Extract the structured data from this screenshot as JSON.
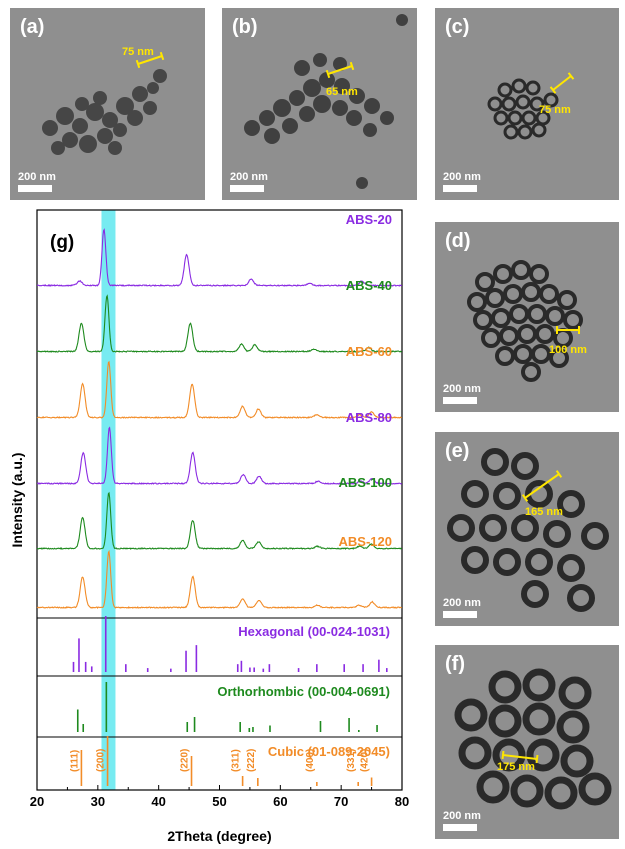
{
  "figure": {
    "panels": [
      {
        "id": "a",
        "label": "(a)",
        "scale_bar": "200 nm",
        "size_label": "75 nm"
      },
      {
        "id": "b",
        "label": "(b)",
        "scale_bar": "200 nm",
        "size_label": "65 nm"
      },
      {
        "id": "c",
        "label": "(c)",
        "scale_bar": "200 nm",
        "size_label": "75 nm"
      },
      {
        "id": "d",
        "label": "(d)",
        "scale_bar": "200 nm",
        "size_label": "100 nm"
      },
      {
        "id": "e",
        "label": "(e)",
        "scale_bar": "200 nm",
        "size_label": "165 nm"
      },
      {
        "id": "f",
        "label": "(f)",
        "scale_bar": "200 nm",
        "size_label": "175 nm"
      }
    ],
    "colors": {
      "purple": "#8a2be2",
      "green": "#1e8a1e",
      "orange": "#f28c28",
      "highlight": "#5fe8ee",
      "tem_background": "#8f8f8f"
    }
  },
  "chart_data": {
    "type": "line",
    "panel_label": "(g)",
    "xlabel": "2Theta (degree)",
    "ylabel": "Intensity (a.u.)",
    "xlim": [
      20,
      80
    ],
    "x_ticks": [
      20,
      30,
      40,
      50,
      60,
      70,
      80
    ],
    "highlight_band": [
      30.6,
      32.9
    ],
    "series": [
      {
        "name": "ABS-20",
        "color": "#8a2be2",
        "peaks": [
          [
            27.0,
            0.08
          ],
          [
            31.0,
            1.0
          ],
          [
            44.6,
            0.55
          ],
          [
            55.2,
            0.12
          ],
          [
            64.8,
            0.04
          ],
          [
            73.4,
            0.08
          ]
        ]
      },
      {
        "name": "ABS-40",
        "color": "#1e8a1e",
        "peaks": [
          [
            27.3,
            0.5
          ],
          [
            31.5,
            1.0
          ],
          [
            45.2,
            0.5
          ],
          [
            53.6,
            0.13
          ],
          [
            55.8,
            0.12
          ],
          [
            65.5,
            0.04
          ],
          [
            74.5,
            0.07
          ]
        ]
      },
      {
        "name": "ABS-60",
        "color": "#f28c28",
        "peaks": [
          [
            27.5,
            0.6
          ],
          [
            31.8,
            1.0
          ],
          [
            45.5,
            0.6
          ],
          [
            53.8,
            0.2
          ],
          [
            56.4,
            0.15
          ],
          [
            66.0,
            0.05
          ],
          [
            73.0,
            0.05
          ],
          [
            75.0,
            0.1
          ]
        ]
      },
      {
        "name": "ABS-80",
        "color": "#8a2be2",
        "peaks": [
          [
            27.6,
            0.55
          ],
          [
            31.9,
            1.0
          ],
          [
            45.6,
            0.55
          ],
          [
            53.9,
            0.16
          ],
          [
            56.5,
            0.13
          ],
          [
            66.2,
            0.04
          ],
          [
            73.2,
            0.04
          ],
          [
            75.1,
            0.09
          ]
        ]
      },
      {
        "name": "ABS-100",
        "color": "#1e8a1e",
        "peaks": [
          [
            27.5,
            0.55
          ],
          [
            31.8,
            1.0
          ],
          [
            45.6,
            0.5
          ],
          [
            53.8,
            0.15
          ],
          [
            56.4,
            0.12
          ],
          [
            66.1,
            0.04
          ],
          [
            73.0,
            0.04
          ],
          [
            75.0,
            0.08
          ]
        ]
      },
      {
        "name": "ABS-120",
        "color": "#f28c28",
        "peaks": [
          [
            27.5,
            0.55
          ],
          [
            31.8,
            1.0
          ],
          [
            45.6,
            0.55
          ],
          [
            53.8,
            0.16
          ],
          [
            56.5,
            0.13
          ],
          [
            66.1,
            0.04
          ],
          [
            73.0,
            0.04
          ],
          [
            75.1,
            0.1
          ]
        ]
      }
    ],
    "references": [
      {
        "name": "Hexagonal (00-024-1031)",
        "color": "#8a2be2",
        "lines": [
          [
            26.0,
            0.18
          ],
          [
            26.9,
            0.6
          ],
          [
            28.0,
            0.18
          ],
          [
            29.0,
            0.1
          ],
          [
            31.3,
            1.0
          ],
          [
            34.6,
            0.14
          ],
          [
            38.2,
            0.07
          ],
          [
            42.0,
            0.06
          ],
          [
            44.5,
            0.38
          ],
          [
            46.2,
            0.48
          ],
          [
            53.0,
            0.14
          ],
          [
            53.6,
            0.2
          ],
          [
            55.0,
            0.08
          ],
          [
            55.7,
            0.08
          ],
          [
            57.2,
            0.06
          ],
          [
            58.2,
            0.14
          ],
          [
            63.0,
            0.07
          ],
          [
            66.0,
            0.14
          ],
          [
            70.5,
            0.14
          ],
          [
            73.6,
            0.14
          ],
          [
            76.2,
            0.22
          ],
          [
            77.5,
            0.07
          ]
        ]
      },
      {
        "name": "Orthorhombic (00-004-0691)",
        "color": "#1e8a1e",
        "lines": [
          [
            26.7,
            0.45
          ],
          [
            27.6,
            0.16
          ],
          [
            31.4,
            1.0
          ],
          [
            44.7,
            0.2
          ],
          [
            45.9,
            0.3
          ],
          [
            53.4,
            0.2
          ],
          [
            54.9,
            0.08
          ],
          [
            55.5,
            0.1
          ],
          [
            58.3,
            0.13
          ],
          [
            66.6,
            0.22
          ],
          [
            71.3,
            0.28
          ],
          [
            72.9,
            0.04
          ],
          [
            75.9,
            0.14
          ]
        ]
      },
      {
        "name": "Cubic (01-089-2045)",
        "color": "#f28c28",
        "lines": [
          [
            27.3,
            0.72
          ],
          [
            31.6,
            1.0
          ],
          [
            45.4,
            0.6
          ],
          [
            53.8,
            0.2
          ],
          [
            56.3,
            0.16
          ],
          [
            66.0,
            0.08
          ],
          [
            72.8,
            0.08
          ],
          [
            75.0,
            0.17
          ]
        ],
        "hkl": [
          "(111)",
          "(200)",
          "(220)",
          "(311)",
          "(222)",
          "(400)",
          "(331)",
          "(420)"
        ]
      }
    ]
  }
}
